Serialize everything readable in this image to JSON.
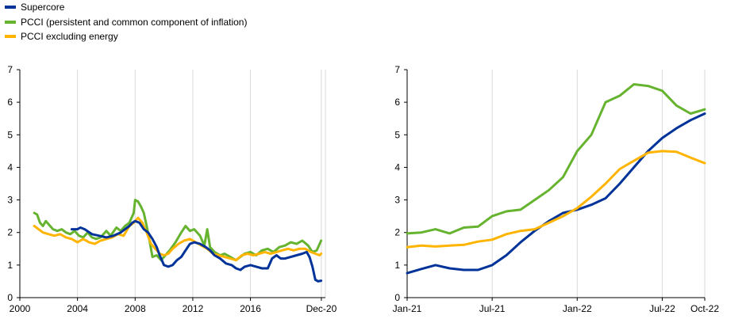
{
  "legend": [
    {
      "label": "Supercore",
      "color": "#003399"
    },
    {
      "label": "PCCI (persistent and common component of inflation)",
      "color": "#65b32e"
    },
    {
      "label": "PCCI excluding energy",
      "color": "#ffb400"
    }
  ],
  "chart_data": [
    {
      "type": "line",
      "title": "",
      "xlabel": "",
      "ylabel": "",
      "xlim": [
        2000,
        2021.2
      ],
      "ylim": [
        0,
        7
      ],
      "x_tick_labels": [
        {
          "x": 2000,
          "label": "2000"
        },
        {
          "x": 2004,
          "label": "2004"
        },
        {
          "x": 2008,
          "label": "2008"
        },
        {
          "x": 2012,
          "label": "2012"
        },
        {
          "x": 2016,
          "label": "2016"
        },
        {
          "x": 2020.92,
          "label": "Dec-20"
        }
      ],
      "y_ticks": [
        0,
        1,
        2,
        3,
        4,
        5,
        6,
        7
      ],
      "grid": "vertical",
      "series": [
        {
          "name": "Supercore",
          "color": "#003399",
          "points": [
            [
              2003.6,
              2.1
            ],
            [
              2003.8,
              2.1
            ],
            [
              2004.0,
              2.1
            ],
            [
              2004.2,
              2.15
            ],
            [
              2004.5,
              2.1
            ],
            [
              2005.0,
              1.95
            ],
            [
              2005.5,
              1.9
            ],
            [
              2006.0,
              1.85
            ],
            [
              2006.5,
              1.9
            ],
            [
              2007.0,
              2.0
            ],
            [
              2007.3,
              2.1
            ],
            [
              2007.6,
              2.2
            ],
            [
              2007.8,
              2.3
            ],
            [
              2008.0,
              2.35
            ],
            [
              2008.3,
              2.3
            ],
            [
              2008.6,
              2.1
            ],
            [
              2008.9,
              2.0
            ],
            [
              2009.2,
              1.8
            ],
            [
              2009.5,
              1.55
            ],
            [
              2009.7,
              1.3
            ],
            [
              2010.0,
              1.0
            ],
            [
              2010.3,
              0.95
            ],
            [
              2010.6,
              1.0
            ],
            [
              2010.9,
              1.15
            ],
            [
              2011.2,
              1.25
            ],
            [
              2011.5,
              1.45
            ],
            [
              2011.8,
              1.65
            ],
            [
              2012.1,
              1.7
            ],
            [
              2012.5,
              1.65
            ],
            [
              2012.9,
              1.55
            ],
            [
              2013.2,
              1.45
            ],
            [
              2013.5,
              1.3
            ],
            [
              2013.9,
              1.2
            ],
            [
              2014.3,
              1.05
            ],
            [
              2014.7,
              1.0
            ],
            [
              2015.0,
              0.9
            ],
            [
              2015.3,
              0.85
            ],
            [
              2015.6,
              0.95
            ],
            [
              2016.0,
              1.0
            ],
            [
              2016.4,
              0.95
            ],
            [
              2016.8,
              0.9
            ],
            [
              2017.2,
              0.9
            ],
            [
              2017.5,
              1.2
            ],
            [
              2017.8,
              1.3
            ],
            [
              2018.1,
              1.2
            ],
            [
              2018.4,
              1.2
            ],
            [
              2018.8,
              1.25
            ],
            [
              2019.2,
              1.3
            ],
            [
              2019.6,
              1.35
            ],
            [
              2019.9,
              1.4
            ],
            [
              2020.1,
              1.25
            ],
            [
              2020.3,
              0.95
            ],
            [
              2020.5,
              0.55
            ],
            [
              2020.7,
              0.5
            ],
            [
              2020.9,
              0.52
            ]
          ]
        },
        {
          "name": "PCCI (persistent and common component of inflation)",
          "color": "#65b32e",
          "points": [
            [
              2001.0,
              2.6
            ],
            [
              2001.2,
              2.55
            ],
            [
              2001.4,
              2.3
            ],
            [
              2001.6,
              2.2
            ],
            [
              2001.8,
              2.35
            ],
            [
              2002.0,
              2.25
            ],
            [
              2002.3,
              2.1
            ],
            [
              2002.6,
              2.05
            ],
            [
              2002.9,
              2.1
            ],
            [
              2003.2,
              2.0
            ],
            [
              2003.5,
              1.95
            ],
            [
              2003.8,
              2.05
            ],
            [
              2004.1,
              1.9
            ],
            [
              2004.4,
              1.85
            ],
            [
              2004.7,
              2.0
            ],
            [
              2005.0,
              1.85
            ],
            [
              2005.3,
              1.8
            ],
            [
              2005.6,
              1.85
            ],
            [
              2006.0,
              2.05
            ],
            [
              2006.3,
              1.9
            ],
            [
              2006.7,
              2.15
            ],
            [
              2007.0,
              2.05
            ],
            [
              2007.3,
              2.2
            ],
            [
              2007.6,
              2.3
            ],
            [
              2007.9,
              2.6
            ],
            [
              2008.0,
              3.0
            ],
            [
              2008.2,
              2.95
            ],
            [
              2008.4,
              2.8
            ],
            [
              2008.6,
              2.6
            ],
            [
              2008.8,
              2.2
            ],
            [
              2009.0,
              1.75
            ],
            [
              2009.2,
              1.25
            ],
            [
              2009.5,
              1.3
            ],
            [
              2009.8,
              1.15
            ],
            [
              2010.1,
              1.3
            ],
            [
              2010.4,
              1.45
            ],
            [
              2010.8,
              1.7
            ],
            [
              2011.2,
              2.0
            ],
            [
              2011.5,
              2.2
            ],
            [
              2011.8,
              2.05
            ],
            [
              2012.1,
              2.1
            ],
            [
              2012.5,
              1.9
            ],
            [
              2012.8,
              1.6
            ],
            [
              2013.0,
              2.1
            ],
            [
              2013.2,
              1.55
            ],
            [
              2013.5,
              1.4
            ],
            [
              2013.9,
              1.3
            ],
            [
              2014.2,
              1.35
            ],
            [
              2014.6,
              1.25
            ],
            [
              2015.0,
              1.15
            ],
            [
              2015.3,
              1.25
            ],
            [
              2015.6,
              1.35
            ],
            [
              2016.0,
              1.4
            ],
            [
              2016.4,
              1.3
            ],
            [
              2016.8,
              1.45
            ],
            [
              2017.2,
              1.5
            ],
            [
              2017.6,
              1.4
            ],
            [
              2018.0,
              1.55
            ],
            [
              2018.4,
              1.6
            ],
            [
              2018.8,
              1.7
            ],
            [
              2019.2,
              1.65
            ],
            [
              2019.6,
              1.75
            ],
            [
              2020.0,
              1.6
            ],
            [
              2020.3,
              1.4
            ],
            [
              2020.6,
              1.45
            ],
            [
              2020.9,
              1.75
            ]
          ]
        },
        {
          "name": "PCCI excluding energy",
          "color": "#ffb400",
          "points": [
            [
              2001.0,
              2.2
            ],
            [
              2001.3,
              2.1
            ],
            [
              2001.6,
              2.0
            ],
            [
              2002.0,
              1.95
            ],
            [
              2002.4,
              1.9
            ],
            [
              2002.8,
              1.95
            ],
            [
              2003.2,
              1.85
            ],
            [
              2003.6,
              1.8
            ],
            [
              2004.0,
              1.7
            ],
            [
              2004.4,
              1.8
            ],
            [
              2004.8,
              1.7
            ],
            [
              2005.2,
              1.65
            ],
            [
              2005.6,
              1.75
            ],
            [
              2006.0,
              1.8
            ],
            [
              2006.4,
              1.85
            ],
            [
              2006.8,
              1.95
            ],
            [
              2007.2,
              1.9
            ],
            [
              2007.6,
              2.2
            ],
            [
              2007.9,
              2.3
            ],
            [
              2008.2,
              2.45
            ],
            [
              2008.5,
              2.3
            ],
            [
              2008.8,
              2.0
            ],
            [
              2009.1,
              1.65
            ],
            [
              2009.4,
              1.5
            ],
            [
              2009.7,
              1.35
            ],
            [
              2010.0,
              1.3
            ],
            [
              2010.3,
              1.35
            ],
            [
              2010.6,
              1.5
            ],
            [
              2011.0,
              1.65
            ],
            [
              2011.4,
              1.75
            ],
            [
              2011.8,
              1.8
            ],
            [
              2012.2,
              1.7
            ],
            [
              2012.6,
              1.6
            ],
            [
              2013.0,
              1.5
            ],
            [
              2013.4,
              1.35
            ],
            [
              2013.8,
              1.3
            ],
            [
              2014.2,
              1.25
            ],
            [
              2014.6,
              1.2
            ],
            [
              2015.0,
              1.15
            ],
            [
              2015.4,
              1.3
            ],
            [
              2015.8,
              1.35
            ],
            [
              2016.2,
              1.3
            ],
            [
              2016.6,
              1.35
            ],
            [
              2017.0,
              1.4
            ],
            [
              2017.4,
              1.35
            ],
            [
              2017.8,
              1.4
            ],
            [
              2018.2,
              1.45
            ],
            [
              2018.6,
              1.5
            ],
            [
              2019.0,
              1.45
            ],
            [
              2019.4,
              1.5
            ],
            [
              2019.8,
              1.5
            ],
            [
              2020.2,
              1.4
            ],
            [
              2020.5,
              1.35
            ],
            [
              2020.8,
              1.3
            ],
            [
              2020.9,
              1.35
            ]
          ]
        }
      ]
    },
    {
      "type": "line",
      "title": "",
      "xlabel": "",
      "ylabel": "",
      "xlim": [
        0,
        21
      ],
      "ylim": [
        0,
        7
      ],
      "x_tick_labels": [
        {
          "x": 0,
          "label": "Jan-21"
        },
        {
          "x": 6,
          "label": "Jul-21"
        },
        {
          "x": 12,
          "label": "Jan-22"
        },
        {
          "x": 18,
          "label": "Jul-22"
        },
        {
          "x": 21,
          "label": "Oct-22"
        }
      ],
      "y_ticks": [
        0,
        1,
        2,
        3,
        4,
        5,
        6,
        7
      ],
      "grid": "vertical",
      "series": [
        {
          "name": "Supercore",
          "color": "#003399",
          "points": [
            [
              0,
              0.75
            ],
            [
              1,
              0.88
            ],
            [
              2,
              1.0
            ],
            [
              3,
              0.9
            ],
            [
              4,
              0.85
            ],
            [
              5,
              0.85
            ],
            [
              6,
              1.0
            ],
            [
              7,
              1.3
            ],
            [
              8,
              1.7
            ],
            [
              9,
              2.05
            ],
            [
              10,
              2.35
            ],
            [
              11,
              2.6
            ],
            [
              12,
              2.7
            ],
            [
              13,
              2.85
            ],
            [
              14,
              3.05
            ],
            [
              15,
              3.5
            ],
            [
              16,
              4.0
            ],
            [
              17,
              4.5
            ],
            [
              18,
              4.9
            ],
            [
              19,
              5.2
            ],
            [
              20,
              5.45
            ],
            [
              21,
              5.65
            ]
          ]
        },
        {
          "name": "PCCI (persistent and common component of inflation)",
          "color": "#65b32e",
          "points": [
            [
              0,
              1.97
            ],
            [
              1,
              2.0
            ],
            [
              2,
              2.1
            ],
            [
              3,
              1.97
            ],
            [
              4,
              2.15
            ],
            [
              5,
              2.18
            ],
            [
              6,
              2.5
            ],
            [
              7,
              2.65
            ],
            [
              8,
              2.7
            ],
            [
              9,
              3.0
            ],
            [
              10,
              3.3
            ],
            [
              11,
              3.7
            ],
            [
              12,
              4.5
            ],
            [
              13,
              5.0
            ],
            [
              14,
              6.0
            ],
            [
              15,
              6.2
            ],
            [
              16,
              6.55
            ],
            [
              17,
              6.5
            ],
            [
              18,
              6.35
            ],
            [
              19,
              5.9
            ],
            [
              20,
              5.65
            ],
            [
              21,
              5.78
            ]
          ]
        },
        {
          "name": "PCCI excluding energy",
          "color": "#ffb400",
          "points": [
            [
              0,
              1.55
            ],
            [
              1,
              1.6
            ],
            [
              2,
              1.57
            ],
            [
              3,
              1.6
            ],
            [
              4,
              1.62
            ],
            [
              5,
              1.72
            ],
            [
              6,
              1.78
            ],
            [
              7,
              1.95
            ],
            [
              8,
              2.05
            ],
            [
              9,
              2.1
            ],
            [
              10,
              2.3
            ],
            [
              11,
              2.5
            ],
            [
              12,
              2.75
            ],
            [
              13,
              3.1
            ],
            [
              14,
              3.5
            ],
            [
              15,
              3.95
            ],
            [
              16,
              4.2
            ],
            [
              17,
              4.45
            ],
            [
              18,
              4.5
            ],
            [
              19,
              4.48
            ],
            [
              20,
              4.3
            ],
            [
              21,
              4.13
            ]
          ]
        }
      ]
    }
  ]
}
